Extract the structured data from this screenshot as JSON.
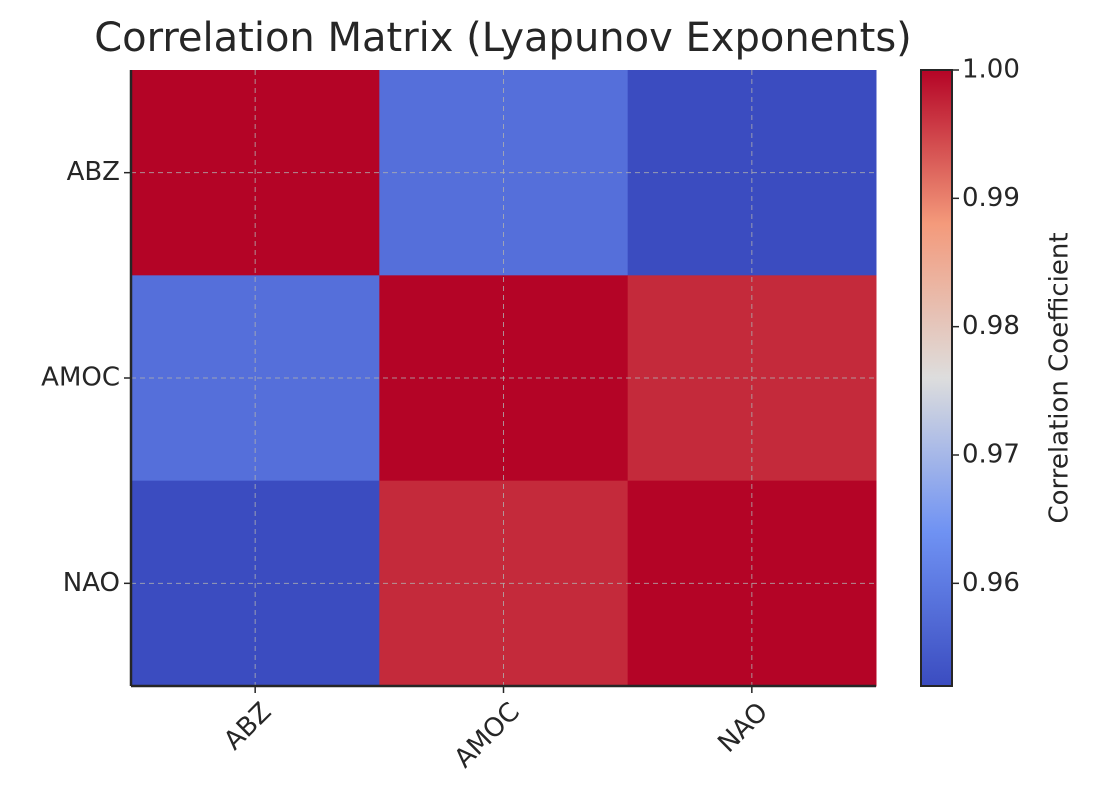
{
  "chart_data": {
    "type": "heatmap",
    "title": "Correlation Matrix (Lyapunov Exponents)",
    "x_categories": [
      "ABZ",
      "AMOC",
      "NAO"
    ],
    "y_categories": [
      "ABZ",
      "AMOC",
      "NAO"
    ],
    "values": [
      [
        1,
        0.958,
        0.952
      ],
      [
        0.958,
        1,
        0.997
      ],
      [
        0.952,
        0.997,
        1
      ]
    ],
    "colormap": "coolwarm",
    "colorbar_label": "Correlation Coefficient",
    "clim": [
      0.952,
      1
    ],
    "cticks": [
      0.96,
      0.97,
      0.98,
      0.99,
      {
        "value": 1,
        "label": "1.00"
      }
    ],
    "grid": true
  }
}
